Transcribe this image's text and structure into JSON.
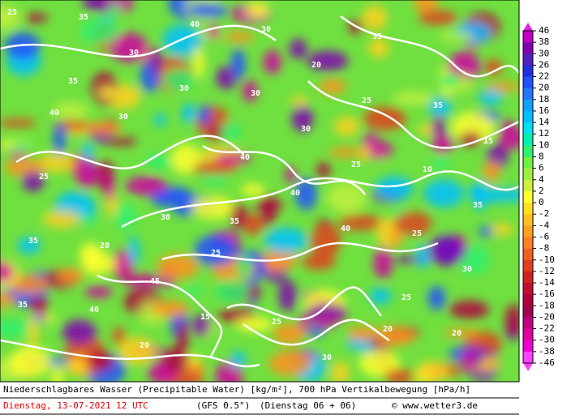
{
  "colorbar": {
    "labels": [
      46,
      38,
      30,
      26,
      22,
      20,
      18,
      16,
      14,
      12,
      10,
      8,
      6,
      4,
      2,
      0,
      -2,
      -4,
      -6,
      -8,
      -10,
      -12,
      -14,
      -16,
      -18,
      -20,
      -22,
      -30,
      -38,
      -46
    ],
    "colors": [
      "#e020e0",
      "#c000c0",
      "#8000b0",
      "#5020c0",
      "#2030e0",
      "#2050ff",
      "#2078ff",
      "#10a0ff",
      "#00c0ff",
      "#00e0f0",
      "#00f0b0",
      "#30f070",
      "#70f040",
      "#a0f040",
      "#d0f040",
      "#ffff30",
      "#ffe020",
      "#ffc020",
      "#ffa020",
      "#ff8020",
      "#f06020",
      "#e04020",
      "#d02020",
      "#c01030",
      "#b00040",
      "#a00050",
      "#c00080",
      "#e000a0",
      "#f000d0",
      "#ff40ff"
    ]
  },
  "contour_labels": [
    "25",
    "30",
    "35",
    "40",
    "20",
    "35",
    "30",
    "40",
    "25",
    "35",
    "30",
    "40",
    "25",
    "30",
    "35",
    "40",
    "30",
    "25",
    "35",
    "20",
    "30",
    "25",
    "35",
    "40",
    "15",
    "20",
    "10",
    "25",
    "45",
    "30",
    "35",
    "15",
    "20",
    "25",
    "30",
    "35",
    "40",
    "30",
    "25",
    "20"
  ],
  "footer": {
    "title": "Niederschlagbares Wasser (Precipitable Water) [kg/m²], 700 hPa Vertikalbewegung [hPa/h]",
    "date": "Dienstag, 13-07-2021  12 UTC",
    "model": "(GFS 0.5°)",
    "run": "(Dienstag 06 + 06)",
    "copyright": "© www.wetter3.de"
  }
}
